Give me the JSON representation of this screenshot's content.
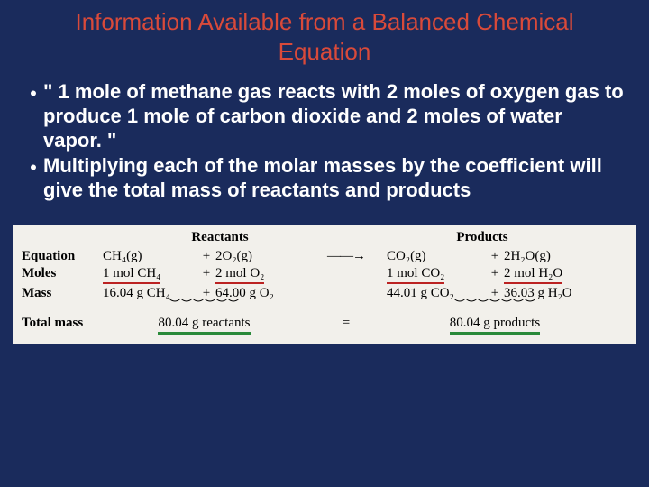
{
  "colors": {
    "background": "#1a2b5c",
    "title": "#d94a3a",
    "body_text": "#ffffff",
    "figure_bg": "#f2f0eb",
    "underline_red": "#b22222",
    "underline_green": "#2a8a3a"
  },
  "title": "Information Available from a Balanced Chemical Equation",
  "bullets": [
    "\" 1 mole of methane gas reacts with 2 moles of oxygen gas to produce 1 mole of carbon dioxide and 2 moles of water vapor. \"",
    "Multiplying each of the molar masses by the coefficient will give the total mass of reactants and products"
  ],
  "figure": {
    "headers": {
      "reactants": "Reactants",
      "products": "Products"
    },
    "row_labels": {
      "equation": "Equation",
      "moles": "Moles",
      "mass": "Mass",
      "total": "Total mass"
    },
    "equation": {
      "r1": "CH₄(g)",
      "plus1": "+",
      "r2": "2O₂(g)",
      "arrow": "——→",
      "p1": "CO₂(g)",
      "plus2": "+",
      "p2": "2H₂O(g)"
    },
    "moles": {
      "r1": "1 mol CH₄",
      "r2": "2 mol O₂",
      "p1": "1 mol CO₂",
      "p2": "2 mol H₂O"
    },
    "mass": {
      "r1": "16.04 g CH₄",
      "r2": "64.00 g O₂",
      "p1": "44.01 g CO₂",
      "p2": "36.03 g H₂O"
    },
    "totals": {
      "reactants": "80.04 g reactants",
      "eq": "=",
      "products": "80.04 g products"
    }
  }
}
